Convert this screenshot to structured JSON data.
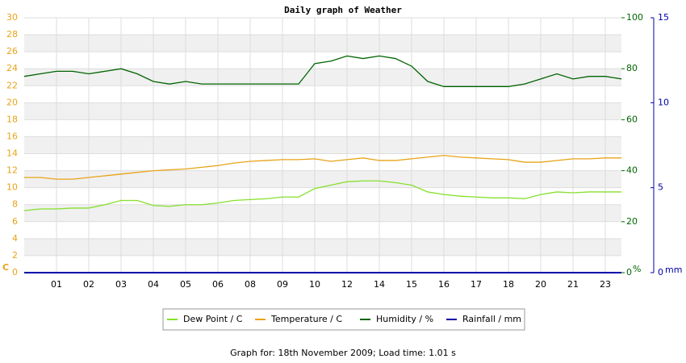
{
  "chart_data": {
    "type": "line",
    "title": "Daily graph of Weather",
    "footer": "Graph for: 18th November 2009; Load time: 1.01 s",
    "y_label": "C",
    "y2_label": "%",
    "y3_label": "mm",
    "categories": [
      null,
      null,
      "01",
      null,
      "02",
      null,
      "03",
      null,
      "04",
      null,
      "05",
      null,
      "06",
      null,
      "08",
      null,
      "09",
      null,
      "10",
      null,
      "12",
      null,
      "14",
      null,
      "15",
      null,
      "16",
      null,
      "17",
      null,
      "18",
      null,
      "20",
      null,
      "21",
      null,
      "23",
      null
    ],
    "ylim": [
      0,
      30
    ],
    "yticks": [
      0,
      2,
      4,
      6,
      8,
      10,
      12,
      14,
      16,
      18,
      20,
      22,
      24,
      26,
      28,
      30
    ],
    "y2lim": [
      0,
      100
    ],
    "y2ticks": [
      0,
      20,
      40,
      60,
      80,
      100
    ],
    "y3lim": [
      0,
      15
    ],
    "y3ticks": [
      0,
      5,
      10,
      15
    ],
    "y_color": "#e8a317",
    "y2_color": "#006400",
    "y3_color": "#0000aa",
    "grid": true,
    "series": [
      {
        "name": "Dew Point / C",
        "color": "#86e02c",
        "values": [
          7.3,
          7.5,
          7.5,
          7.6,
          7.6,
          8.0,
          8.5,
          8.5,
          7.9,
          7.8,
          8.0,
          8.0,
          8.2,
          8.5,
          8.6,
          8.7,
          8.9,
          8.9,
          9.9,
          10.3,
          10.7,
          10.8,
          10.8,
          10.6,
          10.3,
          9.5,
          9.2,
          9.0,
          8.9,
          8.8,
          8.8,
          8.7,
          9.2,
          9.5,
          9.4,
          9.5,
          9.5,
          9.5
        ]
      },
      {
        "name": "Temperature / C",
        "color": "#e8a317",
        "values": [
          11.2,
          11.2,
          11.0,
          11.0,
          11.2,
          11.4,
          11.6,
          11.8,
          12.0,
          12.1,
          12.2,
          12.4,
          12.6,
          12.9,
          13.1,
          13.2,
          13.3,
          13.3,
          13.4,
          13.1,
          13.3,
          13.5,
          13.2,
          13.2,
          13.4,
          13.6,
          13.8,
          13.6,
          13.5,
          13.4,
          13.3,
          13.0,
          13.0,
          13.2,
          13.4,
          13.4,
          13.5,
          13.5
        ]
      },
      {
        "name": "Humidity / %",
        "color": "#006400",
        "axis": "y2",
        "values": [
          77,
          78,
          79,
          79,
          78,
          79,
          80,
          78,
          75,
          74,
          75,
          74,
          74,
          74,
          74,
          74,
          74,
          74,
          82,
          83,
          85,
          84,
          85,
          84,
          81,
          75,
          73,
          73,
          73,
          73,
          73,
          74,
          76,
          78,
          76,
          77,
          77,
          76
        ]
      },
      {
        "name": "Rainfall / mm",
        "color": "#0000aa",
        "axis": "y3",
        "values": [
          0,
          0,
          0,
          0,
          0,
          0,
          0,
          0,
          0,
          0,
          0,
          0,
          0,
          0,
          0,
          0,
          0,
          0,
          0,
          0,
          0,
          0,
          0,
          0,
          0,
          0,
          0,
          0,
          0,
          0,
          0,
          0,
          0,
          0,
          0,
          0,
          0,
          0
        ]
      }
    ]
  }
}
